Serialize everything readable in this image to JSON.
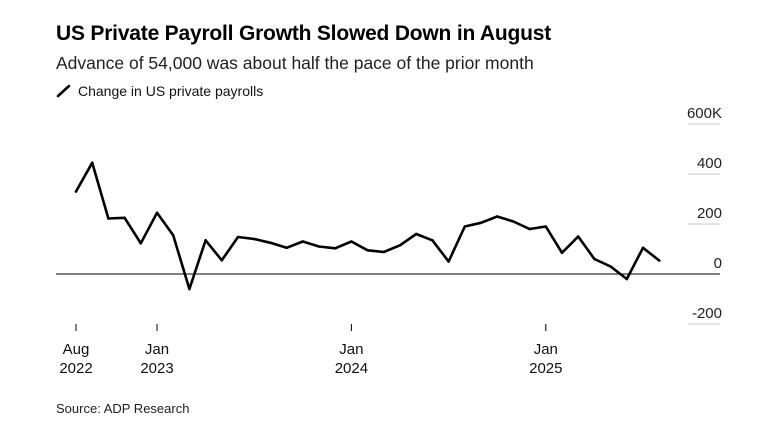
{
  "title": "US Private Payroll Growth Slowed Down in August",
  "subtitle": "Advance of 54,000 was about half the pace of the prior month",
  "legend_label": "Change in US private payrolls",
  "source": "Source: ADP Research",
  "colors": {
    "line": "#000000",
    "grid": "#c8c8c8",
    "zero": "#000000"
  },
  "chart_data": {
    "type": "line",
    "title": "US Private Payroll Growth Slowed Down in August",
    "subtitle": "Advance of 54,000 was about half the pace of the prior month",
    "xlabel": "",
    "ylabel": "",
    "ylim": [
      -200,
      600
    ],
    "y_ticks": [
      {
        "value": 600,
        "label": "600K"
      },
      {
        "value": 400,
        "label": "400"
      },
      {
        "value": 200,
        "label": "200"
      },
      {
        "value": 0,
        "label": "0"
      },
      {
        "value": -200,
        "label": "-200"
      }
    ],
    "x_ticks": [
      {
        "date": "2022-08",
        "line1": "Aug",
        "line2": "2022"
      },
      {
        "date": "2023-01",
        "line1": "Jan",
        "line2": "2023"
      },
      {
        "date": "2024-01",
        "line1": "Jan",
        "line2": "2024"
      },
      {
        "date": "2025-01",
        "line1": "Jan",
        "line2": "2025"
      }
    ],
    "grid": true,
    "legend_position": "top-left",
    "series": [
      {
        "name": "Change in US private payrolls",
        "x": [
          "2022-08",
          "2022-09",
          "2022-10",
          "2022-11",
          "2022-12",
          "2023-01",
          "2023-02",
          "2023-03",
          "2023-04",
          "2023-05",
          "2023-06",
          "2023-07",
          "2023-08",
          "2023-09",
          "2023-10",
          "2023-11",
          "2023-12",
          "2024-01",
          "2024-02",
          "2024-03",
          "2024-04",
          "2024-05",
          "2024-06",
          "2024-07",
          "2024-08",
          "2024-09",
          "2024-10",
          "2024-11",
          "2024-12",
          "2025-01",
          "2025-02",
          "2025-03",
          "2025-04",
          "2025-05",
          "2025-06",
          "2025-07",
          "2025-08"
        ],
        "values": [
          330,
          445,
          222,
          225,
          123,
          245,
          155,
          -60,
          135,
          55,
          148,
          140,
          125,
          105,
          130,
          110,
          103,
          130,
          95,
          88,
          115,
          160,
          135,
          50,
          190,
          205,
          230,
          210,
          180,
          190,
          85,
          150,
          60,
          30,
          -20,
          105,
          54
        ]
      }
    ]
  }
}
